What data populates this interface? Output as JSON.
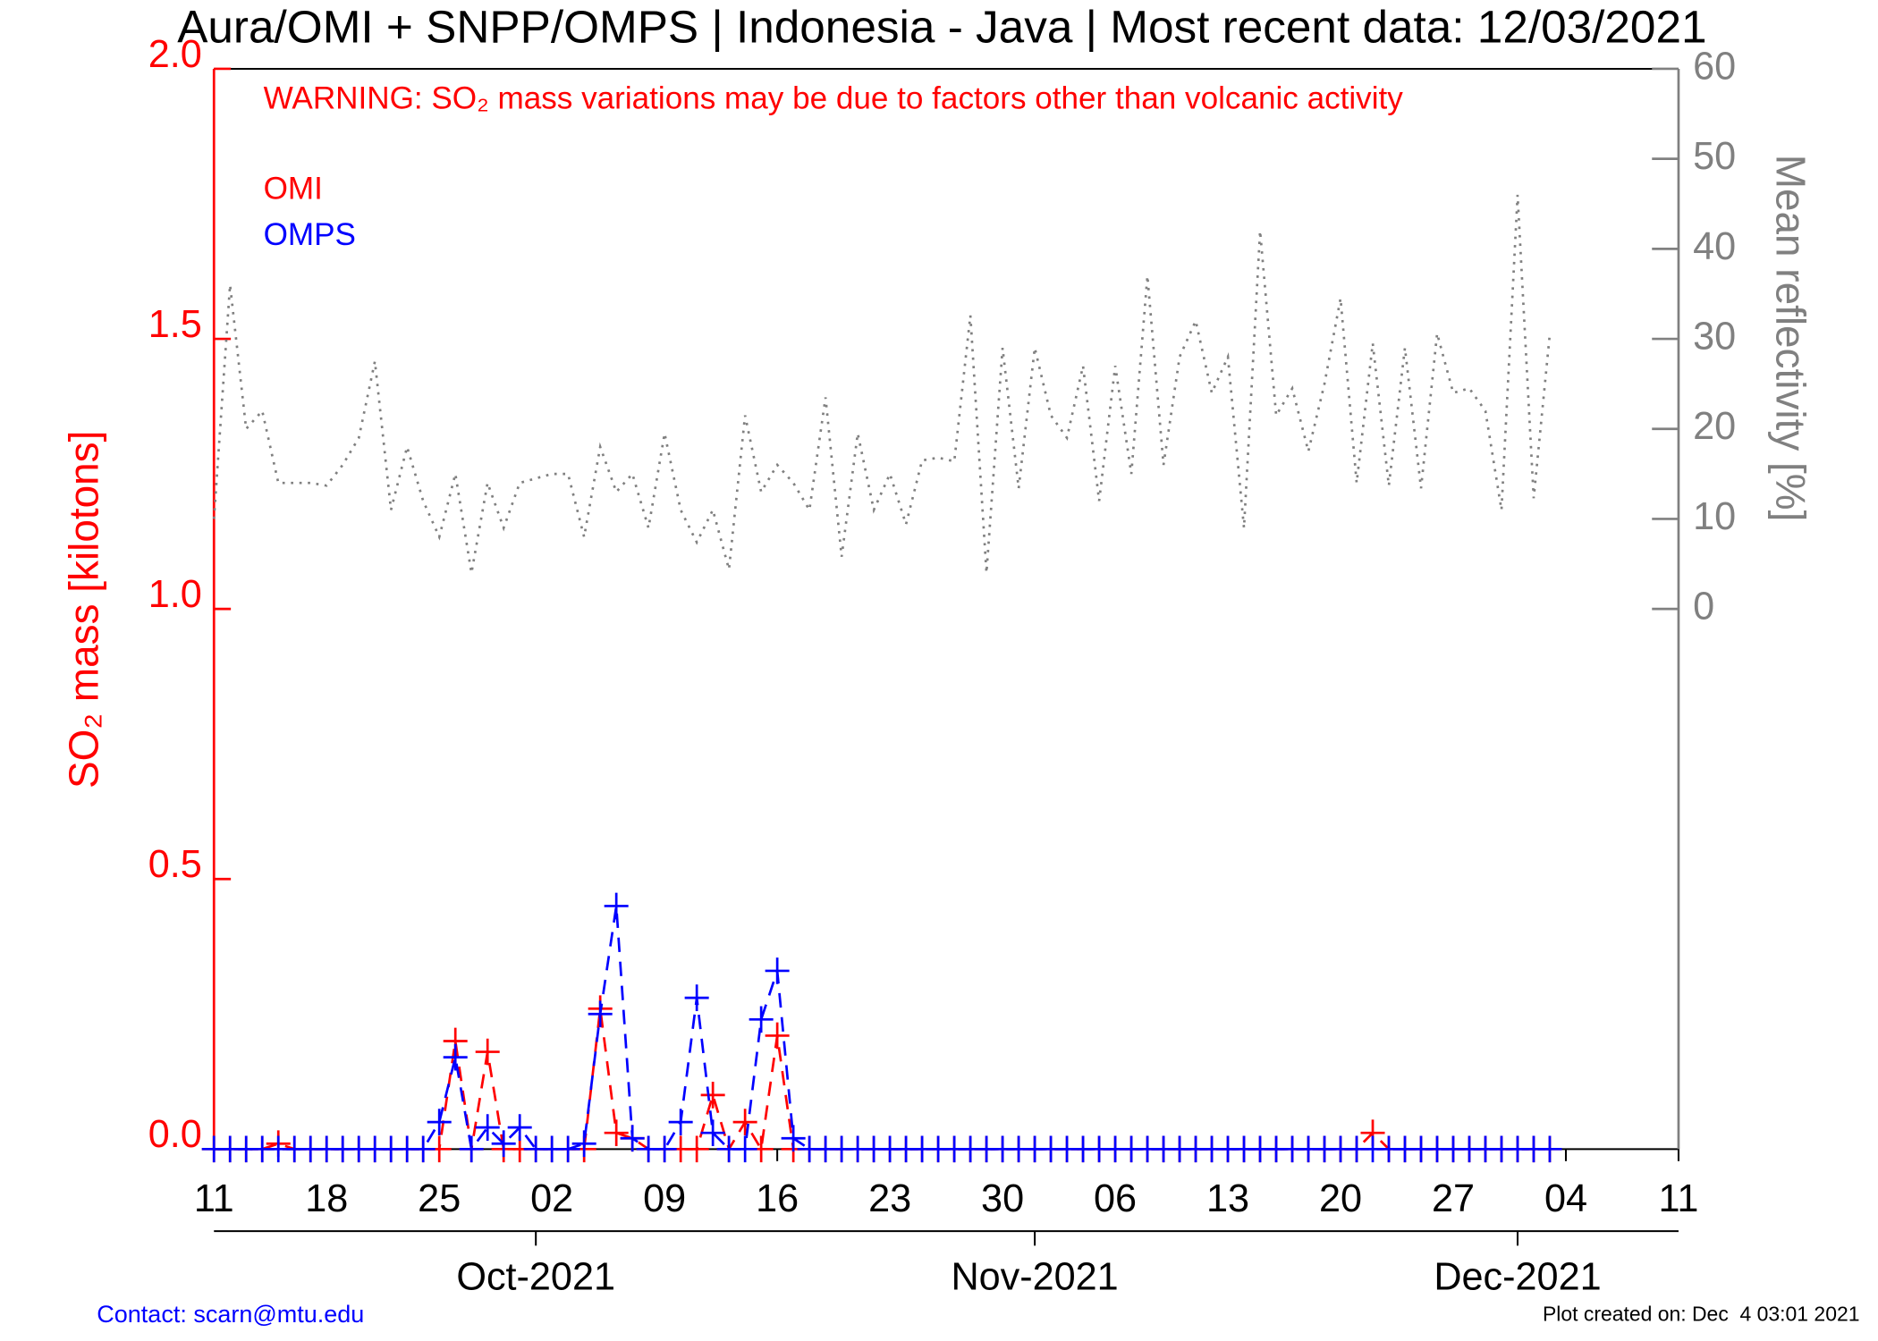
{
  "chart_data": {
    "type": "line",
    "title": "Aura/OMI + SNPP/OMPS | Indonesia - Java | Most recent data: 12/03/2021",
    "annotation": "WARNING: SO₂ mass variations may be due to factors other than volcanic activity",
    "ylabel": "SO₂ mass [kilotons]",
    "y2label": "Mean reflectivity [%]",
    "footer_left": "Contact: scarn@mtu.edu",
    "footer_right": "Plot created on: Dec  4 03:01 2021",
    "x": [
      "2021-09-11",
      "2021-09-12",
      "2021-09-13",
      "2021-09-14",
      "2021-09-15",
      "2021-09-16",
      "2021-09-17",
      "2021-09-18",
      "2021-09-19",
      "2021-09-20",
      "2021-09-21",
      "2021-09-22",
      "2021-09-23",
      "2021-09-24",
      "2021-09-25",
      "2021-09-26",
      "2021-09-27",
      "2021-09-28",
      "2021-09-29",
      "2021-09-30",
      "2021-10-01",
      "2021-10-02",
      "2021-10-03",
      "2021-10-04",
      "2021-10-05",
      "2021-10-06",
      "2021-10-07",
      "2021-10-08",
      "2021-10-09",
      "2021-10-10",
      "2021-10-11",
      "2021-10-12",
      "2021-10-13",
      "2021-10-14",
      "2021-10-15",
      "2021-10-16",
      "2021-10-17",
      "2021-10-18",
      "2021-10-19",
      "2021-10-20",
      "2021-10-21",
      "2021-10-22",
      "2021-10-23",
      "2021-10-24",
      "2021-10-25",
      "2021-10-26",
      "2021-10-27",
      "2021-10-28",
      "2021-10-29",
      "2021-10-30",
      "2021-10-31",
      "2021-11-01",
      "2021-11-02",
      "2021-11-03",
      "2021-11-04",
      "2021-11-05",
      "2021-11-06",
      "2021-11-07",
      "2021-11-08",
      "2021-11-09",
      "2021-11-10",
      "2021-11-11",
      "2021-11-12",
      "2021-11-13",
      "2021-11-14",
      "2021-11-15",
      "2021-11-16",
      "2021-11-17",
      "2021-11-18",
      "2021-11-19",
      "2021-11-20",
      "2021-11-21",
      "2021-11-22",
      "2021-11-23",
      "2021-11-24",
      "2021-11-25",
      "2021-11-26",
      "2021-11-27",
      "2021-11-28",
      "2021-11-29",
      "2021-11-30",
      "2021-12-01",
      "2021-12-02",
      "2021-12-03"
    ],
    "series": [
      {
        "name": "OMI",
        "color": "#ff0000",
        "style": "dashed",
        "marker": "plus",
        "values": [
          0,
          0,
          0,
          0,
          0.01,
          0,
          0,
          0,
          0,
          0,
          0,
          0,
          0,
          0,
          0,
          0.2,
          0,
          0.18,
          0,
          0,
          0,
          0,
          0,
          0,
          0.26,
          0.03,
          0.02,
          0,
          0,
          0,
          0,
          0.1,
          0,
          0.05,
          0,
          0.21,
          0,
          0,
          0,
          0,
          0,
          0,
          0,
          0,
          0,
          0,
          0,
          0,
          0,
          0,
          0,
          0,
          0,
          0,
          0,
          0,
          0,
          0,
          0,
          0,
          0,
          0,
          0,
          0,
          0,
          0,
          0,
          0,
          0,
          0,
          0,
          0,
          0.03,
          0,
          0,
          0,
          0,
          0,
          0,
          0,
          0,
          0,
          0,
          0
        ]
      },
      {
        "name": "OMPS",
        "color": "#0000ff",
        "style": "dashed",
        "marker": "plus",
        "values": [
          0,
          0,
          0,
          0,
          0,
          0,
          0,
          0,
          0,
          0,
          0,
          0,
          0,
          0,
          0.05,
          0.17,
          0,
          0.04,
          0.01,
          0.04,
          0,
          0,
          0,
          0.01,
          0.25,
          0.45,
          0.02,
          0,
          0,
          0.05,
          0.28,
          0.03,
          0,
          0,
          0.24,
          0.33,
          0.02,
          0,
          0,
          0,
          0,
          0,
          0,
          0,
          0,
          0,
          0,
          0,
          0,
          0,
          0,
          0,
          0,
          0,
          0,
          0,
          0,
          0,
          0,
          0,
          0,
          0,
          0,
          0,
          0,
          0,
          0,
          0,
          0,
          0,
          0,
          0,
          0,
          0,
          0,
          0,
          0,
          0,
          0,
          0,
          0,
          0,
          0,
          0
        ]
      },
      {
        "color": "#808080",
        "style": "dotted",
        "axis": "y2",
        "values": [
          10,
          36,
          20,
          22,
          14,
          14,
          14,
          13.7,
          16,
          19,
          27.5,
          11,
          18,
          12,
          8,
          15,
          4,
          14,
          9,
          14,
          14.5,
          15,
          15,
          8,
          18,
          13,
          15,
          9,
          19.5,
          11,
          7.4,
          11,
          4.4,
          21.5,
          13,
          16,
          14,
          11,
          23.5,
          5.8,
          19.5,
          11,
          15,
          9.4,
          16.5,
          16.8,
          16.4,
          32.6,
          4,
          29,
          13.4,
          29,
          21.5,
          19,
          27,
          12,
          27,
          15,
          37,
          16,
          28,
          32,
          24,
          28,
          9,
          42,
          21.5,
          24.5,
          17.5,
          25,
          34.5,
          14,
          29.5,
          13.7,
          29,
          13.4,
          30.6,
          24,
          24.5,
          22,
          11,
          46,
          12.3,
          30.5
        ]
      }
    ],
    "xlim": [
      "2021-09-11",
      "2021-12-11"
    ],
    "xticks": [
      {
        "value": "2021-09-11",
        "label": "11"
      },
      {
        "value": "2021-09-18",
        "label": "18"
      },
      {
        "value": "2021-09-25",
        "label": "25"
      },
      {
        "value": "2021-10-02",
        "label": "02"
      },
      {
        "value": "2021-10-09",
        "label": "09"
      },
      {
        "value": "2021-10-16",
        "label": "16"
      },
      {
        "value": "2021-10-23",
        "label": "23"
      },
      {
        "value": "2021-10-30",
        "label": "30"
      },
      {
        "value": "2021-11-06",
        "label": "06"
      },
      {
        "value": "2021-11-13",
        "label": "13"
      },
      {
        "value": "2021-11-20",
        "label": "20"
      },
      {
        "value": "2021-11-27",
        "label": "27"
      },
      {
        "value": "2021-12-04",
        "label": "04"
      },
      {
        "value": "2021-12-11",
        "label": "11"
      }
    ],
    "month_ticks": [
      {
        "value": "2021-10-01",
        "label": "Oct-2021"
      },
      {
        "value": "2021-11-01",
        "label": "Nov-2021"
      },
      {
        "value": "2021-12-01",
        "label": "Dec-2021"
      }
    ],
    "ylim": [
      0,
      2
    ],
    "yticks": [
      {
        "value": 0,
        "label": "0.0"
      },
      {
        "value": 0.5,
        "label": "0.5"
      },
      {
        "value": 1,
        "label": "1.0"
      },
      {
        "value": 1.5,
        "label": "1.5"
      },
      {
        "value": 2,
        "label": "2.0"
      }
    ],
    "y2lim": [
      -60,
      60
    ],
    "y2ticks": [
      0,
      10,
      20,
      30,
      40,
      50,
      60
    ],
    "left_axis_color": "#ff0000",
    "right_axis_color": "#808080"
  }
}
